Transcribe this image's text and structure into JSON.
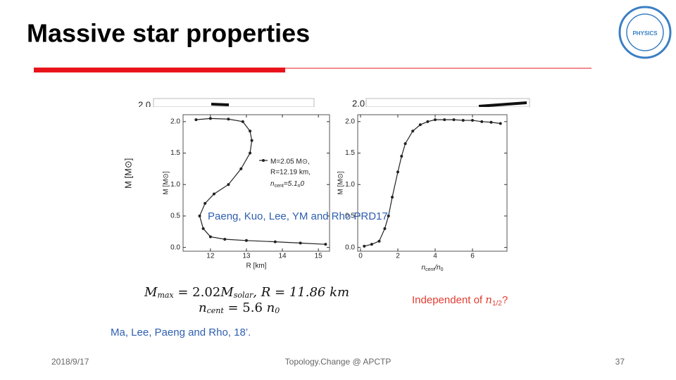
{
  "title": "Massive star properties",
  "logo_text": "PHYSICS",
  "background_labels": [
    "2.0",
    "2.0",
    "M [M⊙]"
  ],
  "citation_1": "Paeng, Kuo, Lee, YM and Rho PRD17’",
  "formula_1": [
    "M",
    "max",
    " = 2.02",
    "M",
    "solar",
    ", R = 11.86 km"
  ],
  "formula_2": [
    "n",
    "cent",
    " = 5.6 ",
    "n",
    "0"
  ],
  "note": [
    "Independent of ",
    "n",
    "1/2",
    "?"
  ],
  "citation_2": "Ma, Lee, Paeng and Rho, 18’.",
  "footer": {
    "date": "2018/9/17",
    "center": "Topology.Change @ APCTP",
    "page": "37"
  },
  "chart_data": [
    {
      "type": "line",
      "x_label": "R [km]",
      "y_label": "M [M⊙]",
      "legend_lines": [
        "M=2.05 M⊙,",
        "R=12.19 km,"
      ],
      "legend_line_3": [
        "n",
        "cent",
        "=5.1",
        "n",
        "0"
      ],
      "x": [
        15.2,
        14.5,
        13.8,
        13.0,
        12.4,
        12.0,
        11.8,
        11.7,
        11.85,
        12.1,
        12.5,
        12.85,
        13.1,
        13.15,
        13.1,
        12.9,
        12.5,
        12.0,
        11.6
      ],
      "values": [
        0.05,
        0.07,
        0.09,
        0.11,
        0.13,
        0.17,
        0.3,
        0.5,
        0.7,
        0.85,
        1.0,
        1.25,
        1.5,
        1.7,
        1.85,
        2.0,
        2.04,
        2.05,
        2.03
      ],
      "color": "#222222",
      "xlim": [
        11.24,
        15.31
      ],
      "ylim": [
        -0.06,
        2.11
      ],
      "xticks": [
        12,
        13,
        14,
        15
      ],
      "yticks": [
        {
          "value": 0,
          "label": "0.0"
        },
        0.5,
        {
          "value": 1,
          "label": "1.0"
        },
        1.5,
        {
          "value": 2,
          "label": "2.0"
        }
      ]
    },
    {
      "type": "line",
      "y_label": "M [M⊙]",
      "x_label_parts": [
        "n",
        "cent",
        "/n",
        "0"
      ],
      "x": [
        0.2,
        0.6,
        1.0,
        1.3,
        1.5,
        1.7,
        2.0,
        2.2,
        2.4,
        2.8,
        3.2,
        3.6,
        4.0,
        4.5,
        5.0,
        5.5,
        6.0,
        6.5,
        7.0,
        7.5
      ],
      "values": [
        0.02,
        0.05,
        0.1,
        0.3,
        0.5,
        0.8,
        1.2,
        1.45,
        1.65,
        1.85,
        1.95,
        2.0,
        2.03,
        2.03,
        2.03,
        2.02,
        2.02,
        2.0,
        1.99,
        1.97
      ],
      "color": "#222222",
      "xlim": [
        -0.15,
        7.85
      ],
      "ylim": [
        -0.06,
        2.11
      ],
      "xticks": [
        0,
        2,
        4,
        6
      ],
      "yticks": [
        {
          "value": 0,
          "label": "0.0"
        },
        0.5,
        {
          "value": 1,
          "label": "1.0"
        },
        1.5,
        {
          "value": 2,
          "label": "2.0"
        }
      ]
    }
  ]
}
